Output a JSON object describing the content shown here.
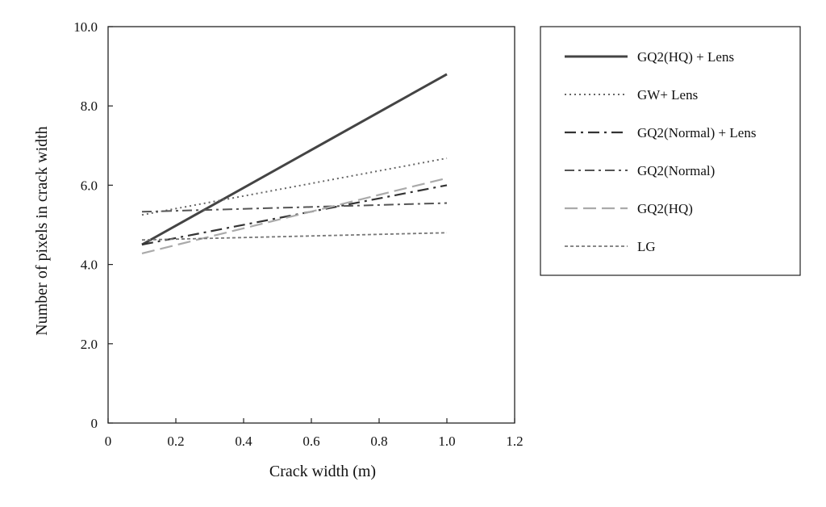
{
  "chart_data": {
    "type": "line",
    "title": "",
    "xlabel": "Crack width (m)",
    "ylabel": "Number of pixels in crack width",
    "xlim": [
      0,
      1.2
    ],
    "ylim": [
      0,
      10
    ],
    "xticks": [
      0,
      0.2,
      0.4,
      0.6,
      0.8,
      1.0,
      1.2
    ],
    "xtick_labels": [
      "0",
      "0.2",
      "0.4",
      "0.6",
      "0.8",
      "1.0",
      "1.2"
    ],
    "yticks": [
      0,
      2,
      4,
      6,
      8,
      10
    ],
    "ytick_labels": [
      "0",
      "2.0",
      "4.0",
      "6.0",
      "8.0",
      "10.0"
    ],
    "grid": false,
    "legend_position": "right",
    "series": [
      {
        "name": "GQ2(HQ) + Lens",
        "x": [
          0.1,
          1.0
        ],
        "values": [
          4.5,
          8.8
        ],
        "color": "#444444",
        "dash": "",
        "width": 3
      },
      {
        "name": "GW+ Lens",
        "x": [
          0.1,
          1.0
        ],
        "values": [
          5.25,
          6.68
        ],
        "color": "#666666",
        "dash": "2 4",
        "width": 2
      },
      {
        "name": "GQ2(Normal) + Lens",
        "x": [
          0.1,
          1.0
        ],
        "values": [
          4.5,
          6.0
        ],
        "color": "#333333",
        "dash": "14 6 3 6",
        "width": 2.2
      },
      {
        "name": "GQ2(Normal)",
        "x": [
          0.1,
          1.0
        ],
        "values": [
          5.33,
          5.55
        ],
        "color": "#555555",
        "dash": "12 5 3 5",
        "width": 2
      },
      {
        "name": "GQ2(HQ)",
        "x": [
          0.1,
          1.0
        ],
        "values": [
          4.28,
          6.18
        ],
        "color": "#aaaaaa",
        "dash": "16 7",
        "width": 2.2
      },
      {
        "name": "LG",
        "x": [
          0.1,
          1.0
        ],
        "values": [
          4.62,
          4.8
        ],
        "color": "#777777",
        "dash": "4 3",
        "width": 1.8
      }
    ]
  }
}
